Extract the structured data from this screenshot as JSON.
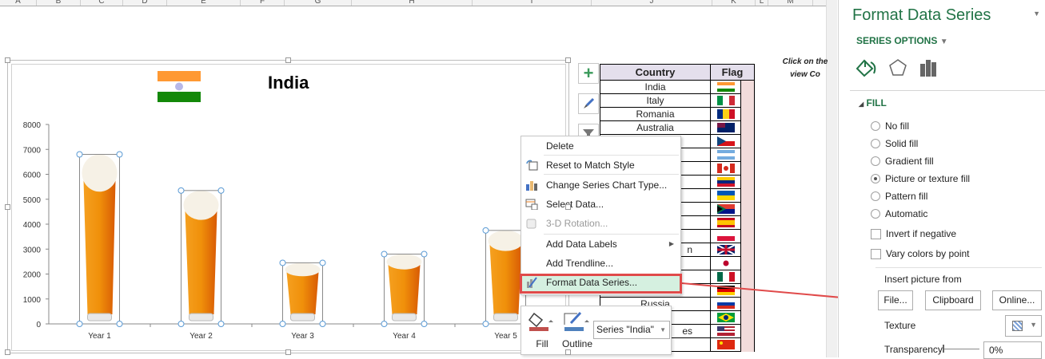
{
  "sheet": {
    "columns": [
      "A",
      "B",
      "C",
      "D",
      "E",
      "F",
      "G",
      "H",
      "I",
      "J",
      "K",
      "L",
      "M"
    ],
    "note_lines": [
      "Click on the",
      "view Co"
    ]
  },
  "chart": {
    "title": "India",
    "flag": "india-flag"
  },
  "chart_data": {
    "type": "bar",
    "title": "India",
    "categories": [
      "Year 1",
      "Year 2",
      "Year 3",
      "Year 4",
      "Year 5"
    ],
    "series": [
      {
        "name": "India",
        "values": [
          6800,
          5350,
          2450,
          2800,
          3750
        ]
      }
    ],
    "yticks": [
      "0",
      "1000",
      "2000",
      "3000",
      "4000",
      "5000",
      "6000",
      "7000",
      "8000"
    ],
    "ylim": [
      0,
      8000
    ],
    "grid": false,
    "fill": "picture-beer-glass"
  },
  "table": {
    "headers": [
      "Country",
      "Flag"
    ],
    "rows": [
      {
        "country": "India",
        "flag": "in"
      },
      {
        "country": "Italy",
        "flag": "it"
      },
      {
        "country": "Romania",
        "flag": "ro"
      },
      {
        "country": "Australia",
        "flag": "au"
      },
      {
        "country": "",
        "flag": "cz"
      },
      {
        "country": "",
        "flag": "ar"
      },
      {
        "country": "",
        "flag": "ca"
      },
      {
        "country": "",
        "flag": "ve"
      },
      {
        "country": "",
        "flag": "ua"
      },
      {
        "country": "",
        "flag": "za"
      },
      {
        "country": "",
        "flag": "es"
      },
      {
        "country": "",
        "flag": "pl"
      },
      {
        "country": "n",
        "flag": "gb"
      },
      {
        "country": "",
        "flag": "jp"
      },
      {
        "country": "",
        "flag": "mx"
      },
      {
        "country": "",
        "flag": "de"
      },
      {
        "country": "Russia",
        "flag": "ru"
      },
      {
        "country": "",
        "flag": "br"
      },
      {
        "country": "es",
        "flag": "us"
      },
      {
        "country": "",
        "flag": "cn"
      }
    ]
  },
  "context_menu": {
    "items": [
      {
        "label": "Delete",
        "icon": "none",
        "disabled": false
      },
      {
        "label": "Reset to Match Style",
        "icon": "reset-style-icon",
        "disabled": false
      },
      {
        "label": "Change Series Chart Type...",
        "icon": "chart-type-icon",
        "disabled": false
      },
      {
        "label": "Select Data...",
        "icon": "select-data-icon",
        "disabled": false
      },
      {
        "label": "3-D Rotation...",
        "icon": "3d-rotation-icon",
        "disabled": true
      },
      {
        "label": "Add Data Labels",
        "icon": "none",
        "disabled": false,
        "submenu": true
      },
      {
        "label": "Add Trendline...",
        "icon": "none",
        "disabled": false
      },
      {
        "label": "Format Data Series...",
        "icon": "format-series-icon",
        "disabled": false,
        "highlighted": true
      }
    ]
  },
  "mini_toolbar": {
    "fill": "Fill",
    "outline": "Outline",
    "series_select": "Series \"India\""
  },
  "panel": {
    "title": "Format Data Series",
    "section": "SERIES OPTIONS",
    "fill_header": "FILL",
    "fill_options": [
      {
        "label": "No fill",
        "checked": false
      },
      {
        "label": "Solid fill",
        "checked": false
      },
      {
        "label": "Gradient fill",
        "checked": false
      },
      {
        "label": "Picture or texture fill",
        "checked": true
      },
      {
        "label": "Pattern fill",
        "checked": false
      },
      {
        "label": "Automatic",
        "checked": false
      }
    ],
    "checkboxes": [
      {
        "label": "Invert if negative",
        "checked": false
      },
      {
        "label": "Vary colors by point",
        "checked": false
      }
    ],
    "insert_label": "Insert picture from",
    "buttons": [
      "File...",
      "Clipboard",
      "Online..."
    ],
    "texture_label": "Texture",
    "transparency_label": "Transparency",
    "transparency_value": "0%"
  },
  "colors": {
    "accent": "#217346",
    "highlight": "#e04a4a",
    "menu_hover": "#d5f0e0",
    "table_header": "#e4dfec",
    "pink_col": "#f2dcdb"
  }
}
